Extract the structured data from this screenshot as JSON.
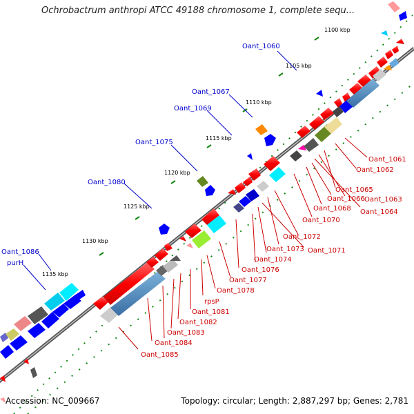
{
  "title": "Ochrobactrum anthropi ATCC 49188 chromosome 1, complete sequ...",
  "footer": {
    "accession": "Accession: NC_009667",
    "summary": "Topology: circular; Length: 2,887,297 bp; Genes: 2,781"
  },
  "colors": {
    "forward_cds": "#ff0000",
    "reverse_cds": "#0000ff",
    "label_red": "#cc0000",
    "label_blue": "#0000cc",
    "backbone": "#666666"
  },
  "kbp_ticks": [
    "1100 kbp",
    "1105 kbp",
    "1110 kbp",
    "1115 kbp",
    "1120 kbp",
    "1125 kbp",
    "1130 kbp",
    "1135 kbp"
  ],
  "labels_above": [
    "Oant_1060",
    "Oant_1067",
    "Oant_1069",
    "Oant_1075",
    "Oant_1080",
    "Oant_1086",
    "purH"
  ],
  "labels_below": [
    "Oant_1061",
    "Oant_1062",
    "Oant_1065",
    "Oant_1066",
    "Oant_1063",
    "Oant_1064",
    "Oant_1068",
    "Oant_1070",
    "Oant_1072",
    "Oant_1073",
    "Oant_1071",
    "Oant_1074",
    "Oant_1076",
    "Oant_1077",
    "Oant_1078",
    "rpsP",
    "Oant_1081",
    "Oant_1082",
    "Oant_1083",
    "Oant_1084",
    "Oant_1085"
  ]
}
